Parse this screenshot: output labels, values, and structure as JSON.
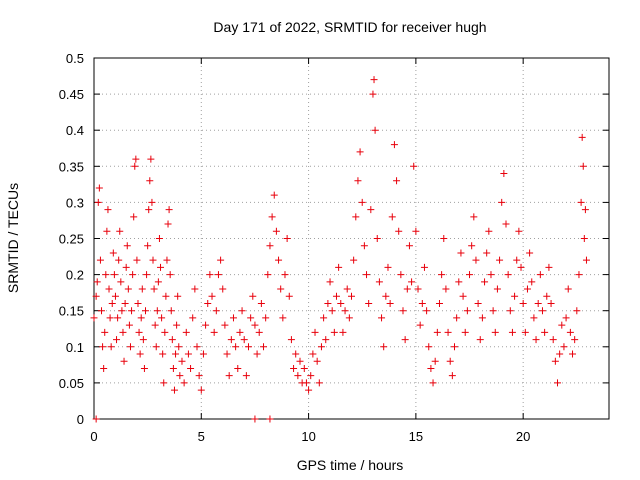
{
  "chart_data": {
    "type": "scatter",
    "title": "Day 171 of 2022, SRMTID for receiver hugh",
    "xlabel": "GPS time / hours",
    "ylabel": "SRMTID / TECUs",
    "xlim": [
      0,
      24
    ],
    "ylim": [
      0,
      0.5
    ],
    "xticks": [
      0,
      5,
      10,
      15,
      20
    ],
    "xtick_labels": [
      "0",
      "5",
      "10",
      "15",
      "20"
    ],
    "yticks": [
      0,
      0.05,
      0.1,
      0.15,
      0.2,
      0.25,
      0.3,
      0.35,
      0.4,
      0.45,
      0.5
    ],
    "ytick_labels": [
      "0",
      "0.05",
      "0.1",
      "0.15",
      "0.2",
      "0.25",
      "0.3",
      "0.35",
      "0.4",
      "0.45",
      "0.5"
    ],
    "grid": true,
    "marker": "+",
    "color": "#e8000b",
    "series": [
      {
        "name": "SRMTID",
        "points": [
          [
            0.1,
            0.0
          ],
          [
            7.5,
            0.0
          ],
          [
            8.2,
            0.0
          ],
          [
            0.0,
            0.14
          ],
          [
            0.1,
            0.17
          ],
          [
            0.15,
            0.19
          ],
          [
            0.2,
            0.3
          ],
          [
            0.25,
            0.32
          ],
          [
            0.3,
            0.22
          ],
          [
            0.35,
            0.15
          ],
          [
            0.4,
            0.1
          ],
          [
            0.45,
            0.07
          ],
          [
            0.5,
            0.12
          ],
          [
            0.55,
            0.2
          ],
          [
            0.6,
            0.26
          ],
          [
            0.65,
            0.29
          ],
          [
            0.7,
            0.18
          ],
          [
            0.75,
            0.14
          ],
          [
            0.8,
            0.1
          ],
          [
            0.85,
            0.16
          ],
          [
            0.9,
            0.23
          ],
          [
            0.95,
            0.2
          ],
          [
            1.0,
            0.17
          ],
          [
            1.05,
            0.11
          ],
          [
            1.1,
            0.14
          ],
          [
            1.15,
            0.22
          ],
          [
            1.2,
            0.26
          ],
          [
            1.25,
            0.19
          ],
          [
            1.3,
            0.15
          ],
          [
            1.35,
            0.12
          ],
          [
            1.4,
            0.08
          ],
          [
            1.45,
            0.16
          ],
          [
            1.5,
            0.21
          ],
          [
            1.55,
            0.24
          ],
          [
            1.6,
            0.18
          ],
          [
            1.65,
            0.13
          ],
          [
            1.7,
            0.1
          ],
          [
            1.75,
            0.15
          ],
          [
            1.8,
            0.2
          ],
          [
            1.85,
            0.28
          ],
          [
            1.9,
            0.35
          ],
          [
            1.95,
            0.36
          ],
          [
            2.0,
            0.22
          ],
          [
            2.05,
            0.16
          ],
          [
            2.1,
            0.12
          ],
          [
            2.15,
            0.09
          ],
          [
            2.2,
            0.14
          ],
          [
            2.25,
            0.18
          ],
          [
            2.3,
            0.11
          ],
          [
            2.35,
            0.07
          ],
          [
            2.4,
            0.15
          ],
          [
            2.45,
            0.2
          ],
          [
            2.5,
            0.24
          ],
          [
            2.55,
            0.29
          ],
          [
            2.6,
            0.33
          ],
          [
            2.65,
            0.36
          ],
          [
            2.7,
            0.3
          ],
          [
            2.75,
            0.22
          ],
          [
            2.8,
            0.18
          ],
          [
            2.85,
            0.13
          ],
          [
            2.9,
            0.1
          ],
          [
            2.95,
            0.15
          ],
          [
            3.0,
            0.19
          ],
          [
            3.05,
            0.25
          ],
          [
            3.1,
            0.21
          ],
          [
            3.15,
            0.14
          ],
          [
            3.2,
            0.09
          ],
          [
            3.25,
            0.05
          ],
          [
            3.3,
            0.12
          ],
          [
            3.35,
            0.17
          ],
          [
            3.4,
            0.22
          ],
          [
            3.45,
            0.27
          ],
          [
            3.5,
            0.29
          ],
          [
            3.55,
            0.2
          ],
          [
            3.6,
            0.15
          ],
          [
            3.65,
            0.11
          ],
          [
            3.7,
            0.07
          ],
          [
            3.75,
            0.04
          ],
          [
            3.8,
            0.09
          ],
          [
            3.85,
            0.13
          ],
          [
            3.9,
            0.17
          ],
          [
            3.95,
            0.1
          ],
          [
            4.0,
            0.06
          ],
          [
            4.1,
            0.08
          ],
          [
            4.2,
            0.05
          ],
          [
            4.3,
            0.12
          ],
          [
            4.4,
            0.09
          ],
          [
            4.5,
            0.07
          ],
          [
            4.6,
            0.14
          ],
          [
            4.7,
            0.18
          ],
          [
            4.8,
            0.1
          ],
          [
            4.9,
            0.06
          ],
          [
            5.0,
            0.04
          ],
          [
            5.1,
            0.09
          ],
          [
            5.2,
            0.13
          ],
          [
            5.3,
            0.16
          ],
          [
            5.4,
            0.2
          ],
          [
            5.5,
            0.17
          ],
          [
            5.6,
            0.12
          ],
          [
            5.7,
            0.15
          ],
          [
            5.8,
            0.2
          ],
          [
            5.9,
            0.22
          ],
          [
            6.0,
            0.18
          ],
          [
            6.1,
            0.13
          ],
          [
            6.2,
            0.09
          ],
          [
            6.3,
            0.06
          ],
          [
            6.4,
            0.11
          ],
          [
            6.5,
            0.14
          ],
          [
            6.6,
            0.1
          ],
          [
            6.7,
            0.07
          ],
          [
            6.8,
            0.12
          ],
          [
            6.9,
            0.15
          ],
          [
            7.0,
            0.11
          ],
          [
            7.1,
            0.06
          ],
          [
            7.2,
            0.1
          ],
          [
            7.3,
            0.14
          ],
          [
            7.4,
            0.17
          ],
          [
            7.5,
            0.13
          ],
          [
            7.6,
            0.09
          ],
          [
            7.7,
            0.12
          ],
          [
            7.8,
            0.16
          ],
          [
            7.9,
            0.1
          ],
          [
            8.0,
            0.14
          ],
          [
            8.1,
            0.2
          ],
          [
            8.2,
            0.24
          ],
          [
            8.3,
            0.28
          ],
          [
            8.4,
            0.31
          ],
          [
            8.5,
            0.26
          ],
          [
            8.6,
            0.22
          ],
          [
            8.7,
            0.18
          ],
          [
            8.8,
            0.14
          ],
          [
            8.9,
            0.2
          ],
          [
            9.0,
            0.25
          ],
          [
            9.1,
            0.17
          ],
          [
            9.2,
            0.11
          ],
          [
            9.3,
            0.07
          ],
          [
            9.4,
            0.09
          ],
          [
            9.5,
            0.06
          ],
          [
            9.6,
            0.08
          ],
          [
            9.7,
            0.05
          ],
          [
            9.8,
            0.07
          ],
          [
            9.9,
            0.05
          ],
          [
            10.0,
            0.04
          ],
          [
            10.1,
            0.06
          ],
          [
            10.2,
            0.09
          ],
          [
            10.3,
            0.12
          ],
          [
            10.4,
            0.08
          ],
          [
            10.5,
            0.05
          ],
          [
            10.6,
            0.1
          ],
          [
            10.7,
            0.14
          ],
          [
            10.8,
            0.11
          ],
          [
            10.9,
            0.16
          ],
          [
            11.0,
            0.19
          ],
          [
            11.1,
            0.15
          ],
          [
            11.2,
            0.12
          ],
          [
            11.3,
            0.17
          ],
          [
            11.4,
            0.21
          ],
          [
            11.5,
            0.16
          ],
          [
            11.6,
            0.12
          ],
          [
            11.7,
            0.15
          ],
          [
            11.8,
            0.18
          ],
          [
            11.9,
            0.14
          ],
          [
            12.0,
            0.17
          ],
          [
            12.1,
            0.22
          ],
          [
            12.2,
            0.28
          ],
          [
            12.3,
            0.33
          ],
          [
            12.4,
            0.37
          ],
          [
            12.5,
            0.3
          ],
          [
            12.6,
            0.24
          ],
          [
            12.7,
            0.2
          ],
          [
            12.8,
            0.16
          ],
          [
            12.9,
            0.29
          ],
          [
            13.0,
            0.45
          ],
          [
            13.05,
            0.47
          ],
          [
            13.1,
            0.4
          ],
          [
            13.2,
            0.25
          ],
          [
            13.3,
            0.19
          ],
          [
            13.4,
            0.14
          ],
          [
            13.5,
            0.1
          ],
          [
            13.6,
            0.17
          ],
          [
            13.7,
            0.21
          ],
          [
            13.8,
            0.16
          ],
          [
            13.9,
            0.28
          ],
          [
            14.0,
            0.38
          ],
          [
            14.1,
            0.33
          ],
          [
            14.2,
            0.26
          ],
          [
            14.3,
            0.2
          ],
          [
            14.4,
            0.15
          ],
          [
            14.5,
            0.11
          ],
          [
            14.6,
            0.18
          ],
          [
            14.7,
            0.24
          ],
          [
            14.8,
            0.19
          ],
          [
            14.9,
            0.35
          ],
          [
            15.0,
            0.26
          ],
          [
            15.1,
            0.18
          ],
          [
            15.2,
            0.13
          ],
          [
            15.3,
            0.16
          ],
          [
            15.4,
            0.21
          ],
          [
            15.5,
            0.15
          ],
          [
            15.6,
            0.1
          ],
          [
            15.7,
            0.07
          ],
          [
            15.8,
            0.05
          ],
          [
            15.9,
            0.08
          ],
          [
            16.0,
            0.12
          ],
          [
            16.1,
            0.16
          ],
          [
            16.2,
            0.2
          ],
          [
            16.3,
            0.25
          ],
          [
            16.4,
            0.18
          ],
          [
            16.5,
            0.12
          ],
          [
            16.6,
            0.08
          ],
          [
            16.7,
            0.06
          ],
          [
            16.8,
            0.1
          ],
          [
            16.9,
            0.14
          ],
          [
            17.0,
            0.19
          ],
          [
            17.1,
            0.23
          ],
          [
            17.2,
            0.17
          ],
          [
            17.3,
            0.12
          ],
          [
            17.4,
            0.15
          ],
          [
            17.5,
            0.2
          ],
          [
            17.6,
            0.24
          ],
          [
            17.7,
            0.28
          ],
          [
            17.8,
            0.22
          ],
          [
            17.9,
            0.16
          ],
          [
            18.0,
            0.11
          ],
          [
            18.1,
            0.14
          ],
          [
            18.2,
            0.19
          ],
          [
            18.3,
            0.23
          ],
          [
            18.4,
            0.26
          ],
          [
            18.5,
            0.2
          ],
          [
            18.6,
            0.15
          ],
          [
            18.7,
            0.12
          ],
          [
            18.8,
            0.18
          ],
          [
            18.9,
            0.22
          ],
          [
            19.0,
            0.3
          ],
          [
            19.1,
            0.34
          ],
          [
            19.2,
            0.27
          ],
          [
            19.3,
            0.2
          ],
          [
            19.4,
            0.15
          ],
          [
            19.5,
            0.12
          ],
          [
            19.6,
            0.17
          ],
          [
            19.7,
            0.22
          ],
          [
            19.8,
            0.26
          ],
          [
            19.9,
            0.21
          ],
          [
            20.0,
            0.16
          ],
          [
            20.1,
            0.12
          ],
          [
            20.2,
            0.18
          ],
          [
            20.3,
            0.23
          ],
          [
            20.4,
            0.19
          ],
          [
            20.5,
            0.14
          ],
          [
            20.6,
            0.11
          ],
          [
            20.7,
            0.16
          ],
          [
            20.8,
            0.2
          ],
          [
            20.9,
            0.15
          ],
          [
            21.0,
            0.12
          ],
          [
            21.1,
            0.17
          ],
          [
            21.2,
            0.21
          ],
          [
            21.3,
            0.16
          ],
          [
            21.4,
            0.11
          ],
          [
            21.5,
            0.08
          ],
          [
            21.6,
            0.05
          ],
          [
            21.7,
            0.09
          ],
          [
            21.8,
            0.13
          ],
          [
            21.9,
            0.1
          ],
          [
            22.0,
            0.14
          ],
          [
            22.1,
            0.18
          ],
          [
            22.2,
            0.12
          ],
          [
            22.3,
            0.09
          ],
          [
            22.4,
            0.11
          ],
          [
            22.5,
            0.15
          ],
          [
            22.6,
            0.2
          ],
          [
            22.7,
            0.3
          ],
          [
            22.75,
            0.39
          ],
          [
            22.8,
            0.35
          ],
          [
            22.85,
            0.25
          ],
          [
            22.9,
            0.29
          ],
          [
            22.95,
            0.22
          ]
        ]
      }
    ]
  }
}
